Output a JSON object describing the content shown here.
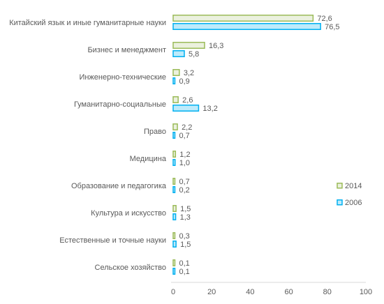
{
  "chart_data": {
    "type": "bar",
    "orientation": "horizontal",
    "categories": [
      "Китайский язык и иные гуманитарные науки",
      "Бизнес и менеджмент",
      "Инженерно-технические",
      "Гуманитарно-социальные",
      "Право",
      "Медицина",
      "Образование и педагогика",
      "Культура и искусство",
      "Естественные и точные науки",
      "Сельское хозяйство"
    ],
    "series": [
      {
        "name": "2014",
        "color": "#9BBB59",
        "fill": "#EBF1DE",
        "values": [
          72.6,
          16.3,
          3.2,
          2.6,
          2.2,
          1.2,
          0.7,
          1.5,
          0.3,
          0.1
        ],
        "labels": [
          "72,6",
          "16,3",
          "3,2",
          "2,6",
          "2,2",
          "1,2",
          "0,7",
          "1,5",
          "0,3",
          "0,1"
        ]
      },
      {
        "name": "2006",
        "color": "#00B0F0",
        "fill": "#BDEBFB",
        "values": [
          76.5,
          5.8,
          0.9,
          13.2,
          0.7,
          1.0,
          0.2,
          1.3,
          1.5,
          0.1
        ],
        "labels": [
          "76,5",
          "5,8",
          "0,9",
          "13,2",
          "0,7",
          "1,0",
          "0,2",
          "1,3",
          "1,5",
          "0,1"
        ]
      }
    ],
    "xlim": [
      0,
      100
    ],
    "xticks": [
      0,
      20,
      40,
      60,
      80,
      100
    ],
    "xtick_labels": [
      "0",
      "20",
      "40",
      "60",
      "80",
      "100"
    ],
    "grid": false,
    "legend_position": "right"
  }
}
